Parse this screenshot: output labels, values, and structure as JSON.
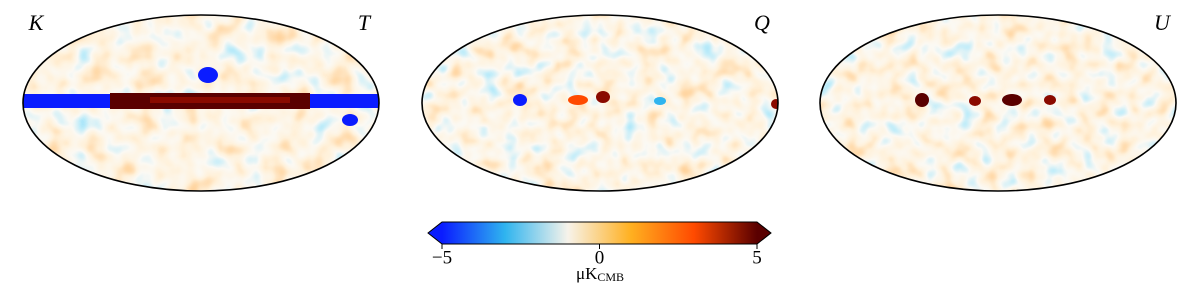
{
  "chart_data": {
    "type": "colorbar",
    "panels": [
      {
        "labels": [
          "K",
          "T"
        ]
      },
      {
        "labels": [
          "Q"
        ]
      },
      {
        "labels": [
          "U"
        ]
      }
    ],
    "clim": [
      -5,
      5
    ],
    "ticks": [
      {
        "value": -5,
        "label": "−5"
      },
      0,
      5
    ],
    "label": "μK",
    "label_sub": "CMB",
    "colors": [
      "#0a1cff",
      "#2fb4ef",
      "#f7f3ea",
      "#ffb020",
      "#ff4a00",
      "#5a0000"
    ]
  }
}
